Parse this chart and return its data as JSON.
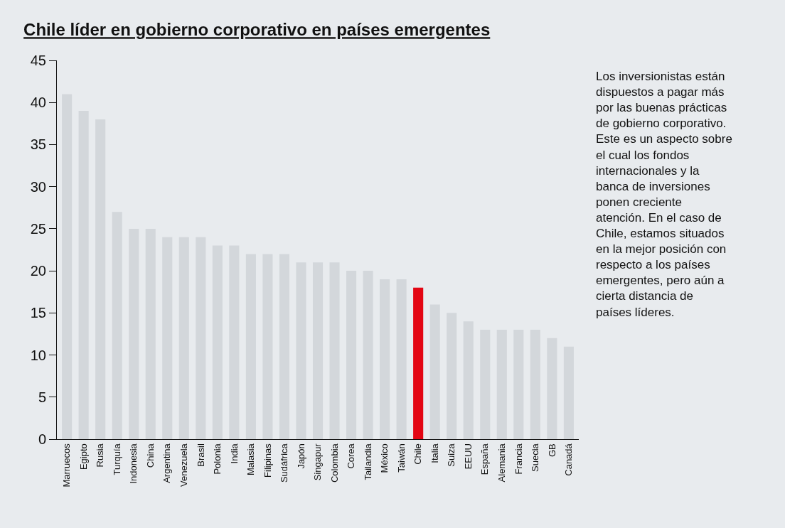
{
  "chart_data": {
    "type": "bar",
    "title": "Chile líder en gobierno corporativo en países emergentes",
    "categories": [
      "Marruecos",
      "Egipto",
      "Rusia",
      "Turquía",
      "Indonesia",
      "China",
      "Argentina",
      "Venezuela",
      "Brasil",
      "Polonia",
      "India",
      "Malasia",
      "Filipinas",
      "Sudáfrica",
      "Japón",
      "Singapur",
      "Colombia",
      "Corea",
      "Tailandia",
      "México",
      "Taiwán",
      "Chile",
      "Italia",
      "Suiza",
      "EEUU",
      "España",
      "Alemania",
      "Francia",
      "Suecia",
      "GB",
      "Canadá"
    ],
    "values": [
      41,
      39,
      38,
      27,
      25,
      25,
      24,
      24,
      24,
      23,
      23,
      22,
      22,
      22,
      21,
      21,
      21,
      20,
      20,
      19,
      19,
      18,
      16,
      15,
      14,
      13,
      13,
      13,
      13,
      12,
      11
    ],
    "colors": [
      "#d3d7db",
      "#d3d7db",
      "#d3d7db",
      "#d3d7db",
      "#d3d7db",
      "#d3d7db",
      "#d3d7db",
      "#d3d7db",
      "#d3d7db",
      "#d3d7db",
      "#d3d7db",
      "#d3d7db",
      "#d3d7db",
      "#d3d7db",
      "#d3d7db",
      "#d3d7db",
      "#d3d7db",
      "#d3d7db",
      "#d3d7db",
      "#d3d7db",
      "#d3d7db",
      "#e30613",
      "#d3d7db",
      "#d3d7db",
      "#d3d7db",
      "#d3d7db",
      "#d3d7db",
      "#d3d7db",
      "#d3d7db",
      "#d3d7db",
      "#d3d7db"
    ],
    "ylim": [
      0,
      45
    ],
    "yticks": [
      0,
      5,
      10,
      15,
      20,
      25,
      30,
      35,
      40,
      45
    ],
    "grid": false,
    "legend": false,
    "annotations": [
      "Los inversionistas están dispuestos a pagar más por las buenas prácticas de gobierno corporativo. Este es un aspecto sobre el cual los fondos internacionales y la banca de inversiones ponen creciente atención. En el caso de Chile, estamos situados en la mejor posición con respecto a los países emergentes, pero aún a cierta distancia de países líderes."
    ]
  }
}
